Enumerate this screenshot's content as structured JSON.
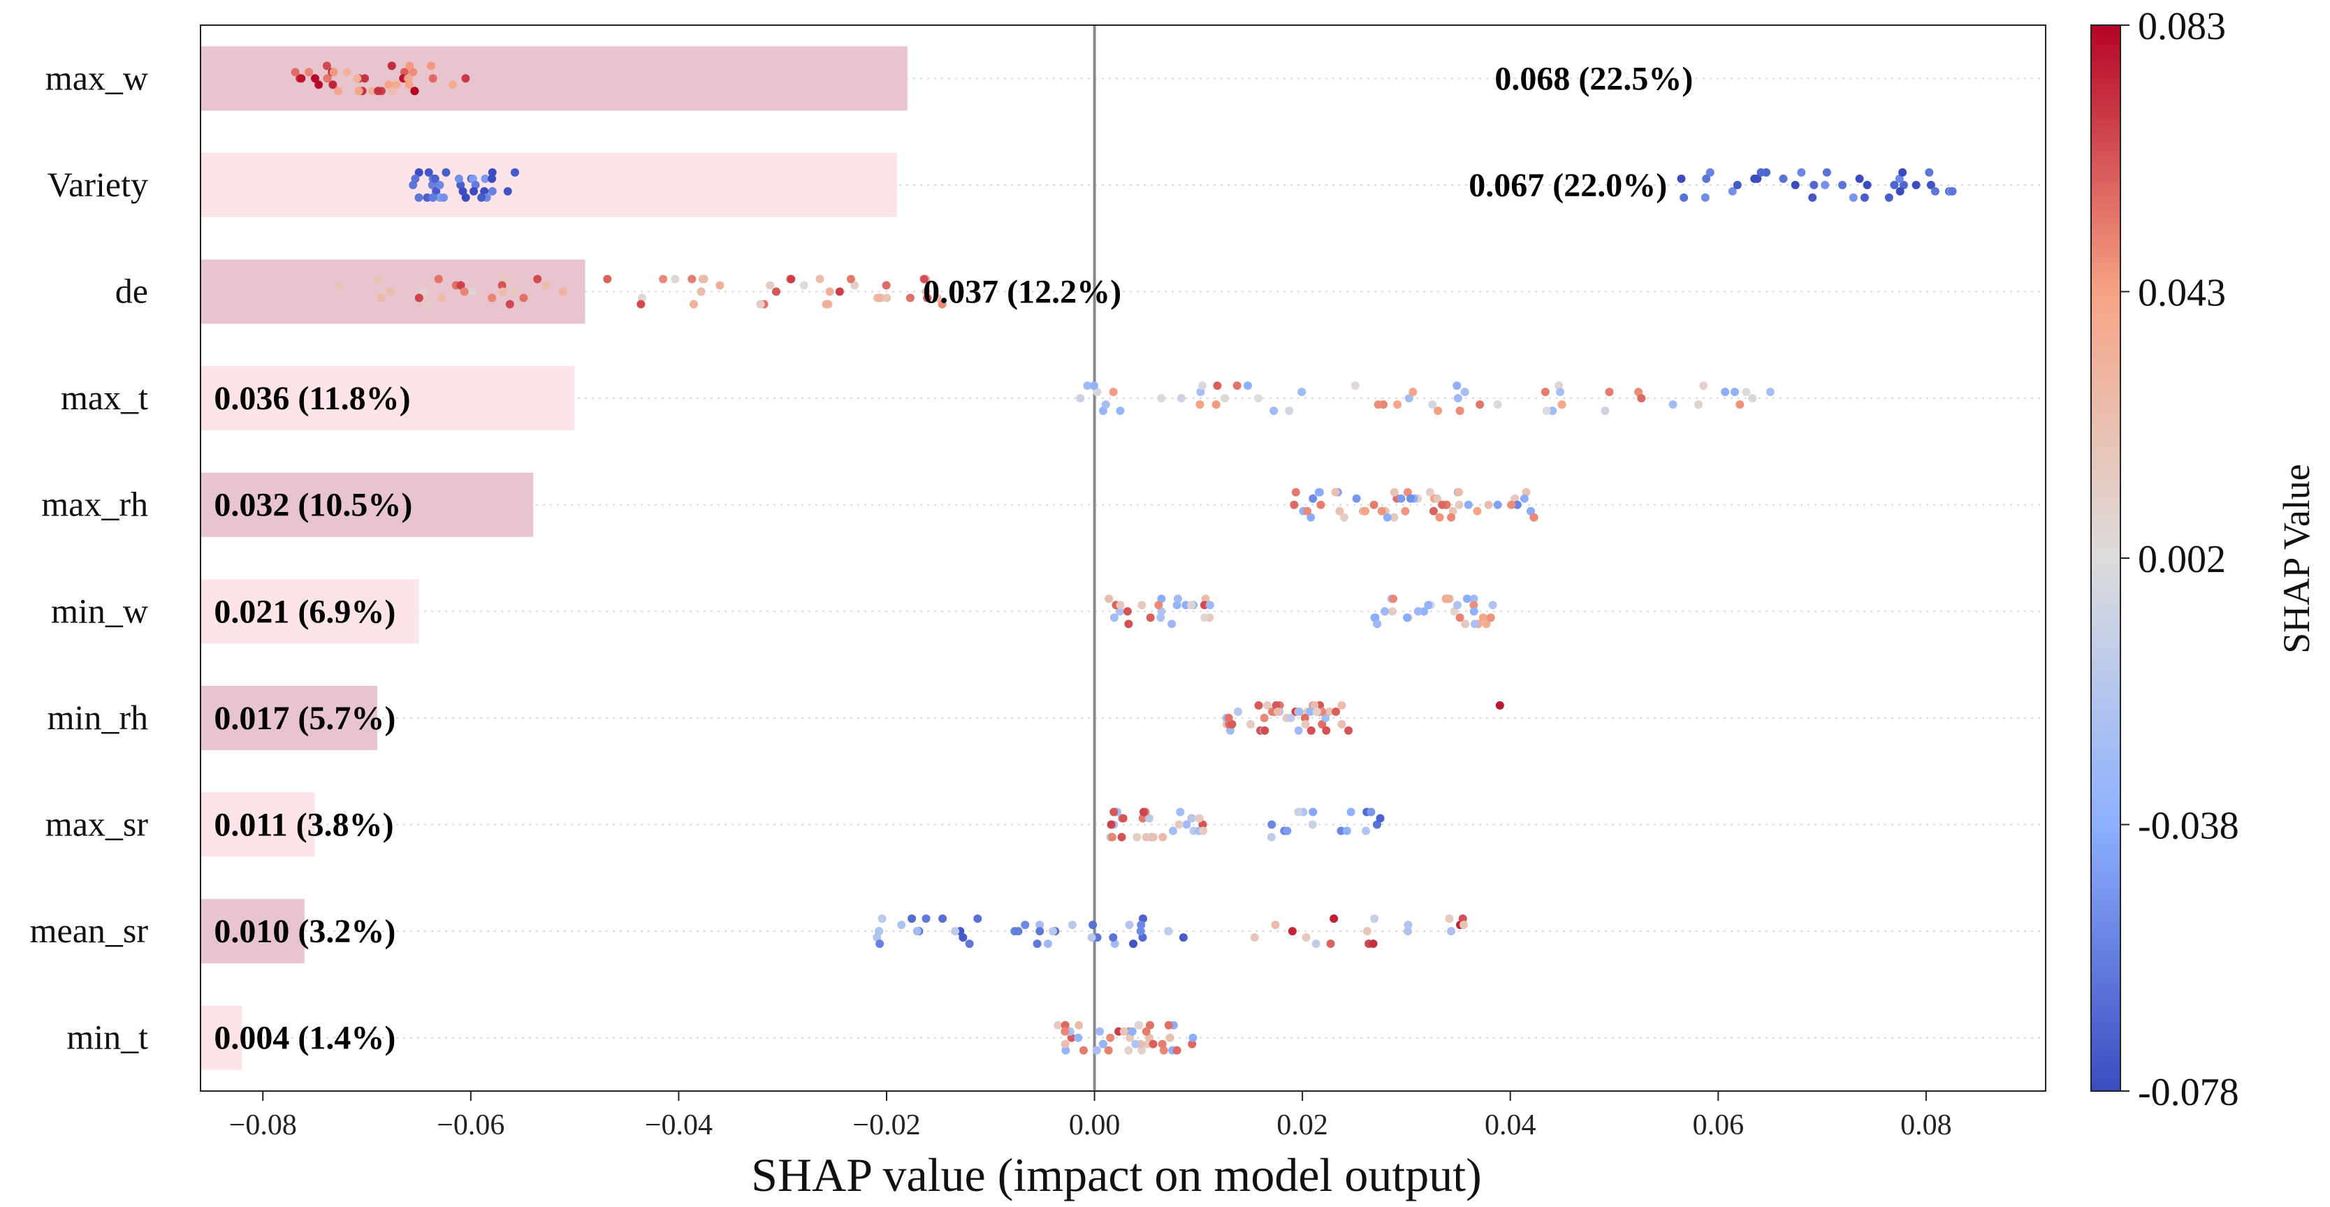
{
  "chart_data": {
    "type": "scatter",
    "title": "",
    "xlabel": "SHAP value (impact on model output)",
    "ylabel": "",
    "xlim": [
      -0.086,
      0.0915
    ],
    "x_ticks": [
      -0.08,
      -0.06,
      -0.04,
      -0.02,
      0.0,
      0.02,
      0.04,
      0.06,
      0.08
    ],
    "x_tick_labels": [
      "−0.08",
      "−0.06",
      "−0.04",
      "−0.02",
      "0.00",
      "0.02",
      "0.04",
      "0.06",
      "0.08"
    ],
    "features": [
      {
        "name": "max_w",
        "mean_abs_shap": 0.068,
        "label": "0.068 (22.5%)",
        "label_anchor_x": 0.0385,
        "bar_color": "#e8c4cf",
        "clusters": [
          {
            "x0": -0.0785,
            "x1": -0.06,
            "n": 38,
            "w": [
              0.7,
              0.8,
              0.95
            ]
          }
        ]
      },
      {
        "name": "Variety",
        "mean_abs_shap": 0.067,
        "label": "0.067 (22.0%)",
        "label_anchor_x": 0.036,
        "bar_color": "#fde4e8",
        "clusters": [
          {
            "x0": -0.066,
            "x1": -0.0555,
            "n": 32,
            "w": [
              0.0,
              0.05,
              0.15
            ]
          },
          {
            "x0": 0.056,
            "x1": 0.083,
            "n": 36,
            "w": [
              0.0,
              0.05,
              0.15
            ]
          }
        ]
      },
      {
        "name": "de",
        "mean_abs_shap": 0.037,
        "label": "0.037 (12.2%)",
        "label_anchor_x": -0.0165,
        "bar_color": "#e8c4cf",
        "clusters": [
          {
            "x0": -0.073,
            "x1": -0.014,
            "n": 60,
            "w": [
              0.55,
              0.65,
              0.85
            ]
          }
        ]
      },
      {
        "name": "max_t",
        "mean_abs_shap": 0.036,
        "label": "0.036 (11.8%)",
        "label_anchor_x": -0.0847,
        "bar_color": "#fde4e8",
        "clusters": [
          {
            "x0": -0.0015,
            "x1": 0.0665,
            "n": 55,
            "w": [
              0.3,
              0.5,
              0.8
            ]
          }
        ]
      },
      {
        "name": "max_rh",
        "mean_abs_shap": 0.032,
        "label": "0.032 (10.5%)",
        "label_anchor_x": -0.0847,
        "bar_color": "#e8c4cf",
        "clusters": [
          {
            "x0": 0.019,
            "x1": 0.043,
            "n": 55,
            "w": [
              0.2,
              0.6,
              0.8
            ]
          }
        ]
      },
      {
        "name": "min_w",
        "mean_abs_shap": 0.021,
        "label": "0.021 (6.9%)",
        "label_anchor_x": -0.0847,
        "bar_color": "#fde4e8",
        "clusters": [
          {
            "x0": 0.0005,
            "x1": 0.0115,
            "n": 24,
            "w": [
              0.3,
              0.6,
              0.85
            ]
          },
          {
            "x0": 0.0265,
            "x1": 0.0385,
            "n": 30,
            "w": [
              0.3,
              0.55,
              0.75
            ]
          }
        ]
      },
      {
        "name": "min_rh",
        "mean_abs_shap": 0.017,
        "label": "0.017 (5.7%)",
        "label_anchor_x": -0.0847,
        "bar_color": "#e8c4cf",
        "clusters": [
          {
            "x0": 0.0115,
            "x1": 0.0245,
            "n": 45,
            "w": [
              0.35,
              0.6,
              0.85
            ]
          },
          {
            "x0": 0.039,
            "x1": 0.0392,
            "n": 1,
            "w": [
              0.0,
              0.0,
              1.0
            ]
          }
        ]
      },
      {
        "name": "max_sr",
        "mean_abs_shap": 0.011,
        "label": "0.011 (3.8%)",
        "label_anchor_x": -0.0847,
        "bar_color": "#fde4e8",
        "clusters": [
          {
            "x0": 0.0015,
            "x1": 0.0105,
            "n": 30,
            "w": [
              0.35,
              0.6,
              0.85
            ]
          },
          {
            "x0": 0.017,
            "x1": 0.028,
            "n": 16,
            "w": [
              0.1,
              0.2,
              0.4
            ]
          }
        ]
      },
      {
        "name": "mean_sr",
        "mean_abs_shap": 0.01,
        "label": "0.010 (3.2%)",
        "label_anchor_x": -0.0847,
        "bar_color": "#e8c4cf",
        "clusters": [
          {
            "x0": -0.022,
            "x1": 0.009,
            "n": 40,
            "w": [
              0.05,
              0.15,
              0.35
            ]
          },
          {
            "x0": 0.015,
            "x1": 0.0385,
            "n": 18,
            "w": [
              0.4,
              0.6,
              0.9
            ]
          }
        ]
      },
      {
        "name": "min_t",
        "mean_abs_shap": 0.004,
        "label": "0.004 (1.4%)",
        "label_anchor_x": -0.0847,
        "bar_color": "#fde4e8",
        "clusters": [
          {
            "x0": -0.004,
            "x1": 0.0095,
            "n": 42,
            "w": [
              0.3,
              0.6,
              0.85
            ]
          }
        ]
      }
    ],
    "bar_baseline": -0.086,
    "colorbar": {
      "label": "SHAP Value",
      "tick_labels": [
        "0.083",
        "0.043",
        "0.002",
        "-0.038",
        "-0.078"
      ],
      "stops": [
        "#b40426",
        "#f6a385",
        "#dddcdc",
        "#8db0fe",
        "#3b4cc0"
      ]
    }
  }
}
